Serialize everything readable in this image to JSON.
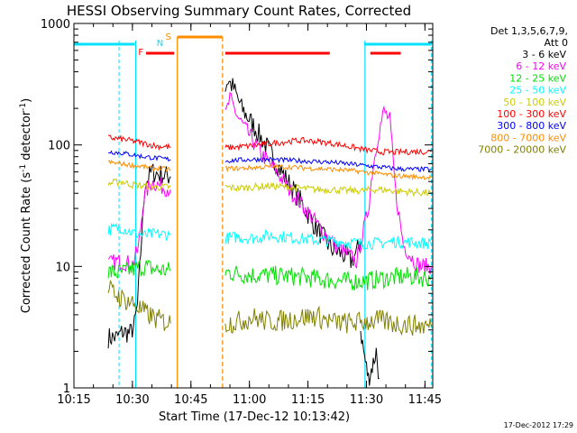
{
  "chart_data": {
    "type": "line",
    "title": "HESSI Observing Summary Count Rates, Corrected",
    "xlabel": "Start Time (17-Dec-12 10:13:42)",
    "ylabel_main": "Corrected Count Rate (s",
    "ylabel_sup1": "-1",
    "ylabel_mid": " detector",
    "ylabel_sup2": "-1",
    "ylabel_end": ")",
    "yscale": "log",
    "ylim": [
      1,
      1000
    ],
    "xlim_minutes": [
      10.0,
      102.0
    ],
    "x_ticks": [
      "10:15",
      "10:30",
      "10:45",
      "11:00",
      "11:15",
      "11:30",
      "11:45"
    ],
    "y_ticks": [
      "1",
      "10",
      "100",
      "1000"
    ],
    "footer_date": "17-Dec-2012 17:29",
    "legend": {
      "header_line1": "Det 1,3,5,6,7,9,",
      "header_line2": "Att 0",
      "placement": "right"
    },
    "flags": {
      "labels": [
        "F",
        "N",
        "S"
      ],
      "colors": {
        "F": "#ff0000",
        "N": "#00e0ff",
        "S": "#ff8c00"
      },
      "night": [
        [
          10.0,
          25.6
        ],
        [
          84.4,
          101.7
        ]
      ],
      "flare": [
        [
          28.5,
          35.7
        ],
        [
          48.8,
          75.6
        ],
        [
          86.0,
          93.8
        ]
      ],
      "saa": [
        [
          36.5,
          48.1
        ]
      ],
      "night_lines": [
        25.6,
        84.4
      ],
      "saa_lines": [
        36.5,
        48.1
      ]
    },
    "series": [
      {
        "name": "3 - 6 keV",
        "color": "#000000",
        "segments": [
          {
            "x": [
              18.8,
              21.0,
              22.5,
              24.4,
              25.5,
              26.3,
              28.2,
              30.0,
              32.0,
              34.8
            ],
            "y": [
              2.6,
              2.6,
              2.9,
              2.8,
              3.3,
              4.8,
              48,
              60,
              57,
              55
            ]
          },
          {
            "x": [
              48.8,
              49.5,
              51.0,
              53.0,
              56.0,
              60.0,
              64.0,
              68.0,
              72.0,
              76.0,
              80.0,
              81.0,
              82.5,
              83.5
            ],
            "y": [
              300,
              340,
              290,
              200,
              145,
              90,
              55,
              35,
              21,
              14,
              12,
              11,
              13,
              16
            ]
          },
          {
            "x": [
              83.5,
              84.5,
              85.5,
              86.5,
              87.5,
              88.3
            ],
            "y": [
              3.0,
              1.8,
              1.2,
              1.5,
              2.0,
              1.2
            ]
          }
        ]
      },
      {
        "name": "6 - 12 keV",
        "color": "#ff00ff",
        "segments": [
          {
            "x": [
              18.8,
              21.0,
              23.0,
              25.0,
              26.5,
              28.0,
              30.0,
              32.0,
              34.8
            ],
            "y": [
              10.5,
              11.0,
              10.8,
              10.5,
              14.0,
              38,
              50,
              46,
              43
            ]
          },
          {
            "x": [
              48.8,
              50.0,
              52.0,
              55.0,
              58.0,
              62.0,
              66.0,
              70.0,
              74.0,
              78.0,
              81.0,
              82.5,
              84.0,
              85.5,
              86.5,
              88.0,
              89.5,
              91.0,
              92.5,
              94.5,
              96.5,
              98.0,
              99.0,
              100.0,
              101.6
            ],
            "y": [
              170,
              240,
              170,
              120,
              85,
              60,
              40,
              28,
              19,
              14,
              12,
              11,
              18,
              30,
              60,
              120,
              190,
              160,
              40,
              15,
              12,
              10.5,
              10,
              10,
              10
            ]
          }
        ]
      },
      {
        "name": "12 - 25 keV",
        "color": "#00e000",
        "segments": [
          {
            "x": [
              18.8,
              22.0,
              25.0,
              28.0,
              31.0,
              34.8
            ],
            "y": [
              9.0,
              8.8,
              9.5,
              10.0,
              9.4,
              9.2
            ]
          },
          {
            "x": [
              48.8,
              55.0,
              62.0,
              68.0,
              74.0,
              80.0,
              85.0,
              90.0,
              96.0,
              101.6
            ],
            "y": [
              9.0,
              8.5,
              8.4,
              8.2,
              7.8,
              7.5,
              7.6,
              8.0,
              8.3,
              8.0
            ]
          }
        ]
      },
      {
        "name": "25 - 50 keV",
        "color": "#00ffff",
        "segments": [
          {
            "x": [
              18.8,
              22.0,
              25.0,
              28.0,
              31.0,
              34.8
            ],
            "y": [
              20,
              21,
              19,
              18,
              18.5,
              18.2
            ]
          },
          {
            "x": [
              48.8,
              52.0,
              56.0,
              60.0,
              64.0,
              68.0,
              72.0,
              76.0,
              80.0,
              84.0,
              88.0,
              92.0,
              96.0,
              101.6
            ],
            "y": [
              17,
              17.5,
              17.0,
              18.0,
              17.5,
              17.0,
              16.5,
              16.2,
              15.8,
              15.5,
              15.5,
              16.0,
              15.8,
              15.5
            ]
          }
        ]
      },
      {
        "name": "50 - 100 keV",
        "color": "#cccc00",
        "segments": [
          {
            "x": [
              18.8,
              22.0,
              25.0,
              28.0,
              31.0,
              34.8
            ],
            "y": [
              48,
              50,
              47,
              46,
              45,
              45
            ]
          },
          {
            "x": [
              48.8,
              52.0,
              56.0,
              60.0,
              64.0,
              68.0,
              72.0,
              76.0,
              80.0,
              84.0,
              88.0,
              92.0,
              96.0,
              101.6
            ],
            "y": [
              45,
              44,
              45,
              46,
              45,
              44,
              43,
              43,
              42,
              42,
              43,
              42,
              41,
              40
            ]
          }
        ]
      },
      {
        "name": "100 - 300 keV",
        "color": "#ff0000",
        "segments": [
          {
            "x": [
              18.8,
              22.0,
              25.0,
              28.0,
              31.0,
              34.8
            ],
            "y": [
              115,
              112,
              108,
              103,
              98,
              96
            ]
          },
          {
            "x": [
              48.8,
              52.0,
              56.0,
              60.0,
              64.0,
              68.0,
              72.0,
              76.0,
              80.0,
              84.0,
              88.0,
              92.0,
              96.0,
              101.6
            ],
            "y": [
              95,
              96,
              99,
              102,
              106,
              109,
              107,
              103,
              98,
              92,
              88,
              87,
              88,
              88
            ]
          }
        ]
      },
      {
        "name": "300 - 800 keV",
        "color": "#0000ff",
        "segments": [
          {
            "x": [
              18.8,
              22.0,
              25.0,
              28.0,
              31.0,
              34.8
            ],
            "y": [
              88,
              86,
              83,
              80,
              78,
              76
            ]
          },
          {
            "x": [
              48.8,
              52.0,
              56.0,
              60.0,
              64.0,
              68.0,
              72.0,
              76.0,
              80.0,
              84.0,
              88.0,
              92.0,
              96.0,
              101.6
            ],
            "y": [
              74,
              75,
              76,
              76,
              75,
              74,
              73,
              72,
              70,
              68,
              66,
              64,
              63,
              63
            ]
          }
        ]
      },
      {
        "name": "800 - 7000 keV",
        "color": "#ff8c00",
        "segments": [
          {
            "x": [
              18.8,
              22.0,
              25.0,
              28.0,
              31.0,
              34.8
            ],
            "y": [
              72,
              70,
              68,
              66,
              64,
              63
            ]
          },
          {
            "x": [
              48.8,
              52.0,
              56.0,
              60.0,
              64.0,
              68.0,
              72.0,
              76.0,
              80.0,
              84.0,
              88.0,
              92.0,
              96.0,
              101.6
            ],
            "y": [
              64,
              64,
              65,
              66,
              66,
              65,
              64,
              63,
              62,
              60,
              58,
              56,
              55,
              54
            ]
          }
        ]
      },
      {
        "name": "7000 - 20000 keV",
        "color": "#808000",
        "segments": [
          {
            "x": [
              18.8,
              22.0,
              25.0,
              28.0,
              31.0,
              34.8
            ],
            "y": [
              6.5,
              5.5,
              5.0,
              4.2,
              3.7,
              3.4
            ]
          },
          {
            "x": [
              48.8,
              52.0,
              56.0,
              60.0,
              64.0,
              68.0,
              72.0,
              76.0,
              80.0,
              84.0,
              88.0,
              92.0,
              96.0,
              101.6
            ],
            "y": [
              3.4,
              3.5,
              3.8,
              3.5,
              3.6,
              3.8,
              3.9,
              3.5,
              3.4,
              3.5,
              3.6,
              3.4,
              3.3,
              3.2
            ]
          }
        ]
      }
    ]
  }
}
